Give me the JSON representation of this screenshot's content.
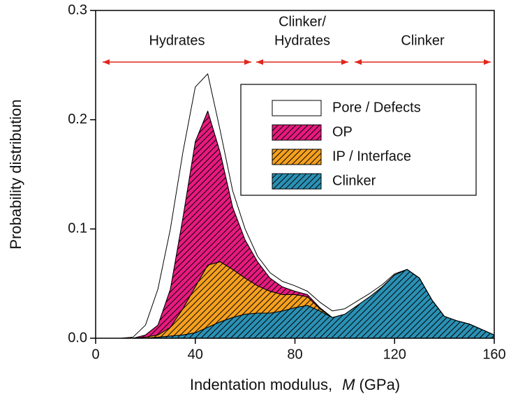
{
  "chart_data": {
    "type": "stacked-area",
    "y_label": "Probability distribution",
    "x_label": {
      "text": "Indentation modulus,",
      "symbol": "M",
      "unit": "(GPa)"
    },
    "xlim": [
      0,
      160
    ],
    "ylim": [
      0,
      0.3
    ],
    "xticks": [
      0,
      40,
      80,
      120,
      160
    ],
    "yticks": [
      {
        "value": 0,
        "label": "0.0"
      },
      0.1,
      0.2,
      0.3
    ],
    "annotations": [
      {
        "lines": [
          "Hydrates"
        ]
      },
      {
        "lines": [
          "Clinker/",
          "Hydrates"
        ]
      },
      {
        "lines": [
          "Clinker"
        ]
      }
    ],
    "x": [
      10,
      15,
      20,
      25,
      30,
      35,
      40,
      45,
      50,
      55,
      60,
      65,
      70,
      75,
      80,
      85,
      90,
      95,
      100,
      105,
      110,
      115,
      120,
      125,
      130,
      135,
      140,
      145,
      150,
      155,
      160
    ],
    "series": [
      {
        "name": "Pore / Defects",
        "color": "#ffffff",
        "hatch": false,
        "values": [
          0,
          0.001,
          0.009,
          0.033,
          0.055,
          0.06,
          0.05,
          0.034,
          0.02,
          0.015,
          0.01,
          0.005,
          0.005,
          0.005,
          0.005,
          0.003,
          0.005,
          0.006,
          0.005,
          0.004,
          0.003,
          0.002,
          0.001,
          0,
          0,
          0,
          0,
          0,
          0,
          0,
          0
        ]
      },
      {
        "name": "OP",
        "color": "#e8197f",
        "hatch": true,
        "values": [
          0,
          0,
          0.002,
          0.009,
          0.035,
          0.083,
          0.133,
          0.141,
          0.1,
          0.057,
          0.035,
          0.022,
          0.012,
          0.007,
          0.003,
          0.002,
          0.001,
          0,
          0,
          0,
          0,
          0,
          0,
          0,
          0,
          0,
          0,
          0,
          0,
          0,
          0
        ]
      },
      {
        "name": "IP / Interface",
        "color": "#f5a01e",
        "hatch": true,
        "values": [
          0,
          0,
          0.001,
          0.002,
          0.008,
          0.024,
          0.042,
          0.057,
          0.055,
          0.044,
          0.033,
          0.025,
          0.02,
          0.015,
          0.012,
          0.008,
          0.002,
          0,
          0,
          0,
          0,
          0,
          0,
          0,
          0,
          0,
          0,
          0,
          0,
          0,
          0
        ]
      },
      {
        "name": "Clinker",
        "color": "#2a90b4",
        "hatch": true,
        "values": [
          0,
          0,
          0,
          0.001,
          0.002,
          0.003,
          0.005,
          0.01,
          0.015,
          0.019,
          0.022,
          0.023,
          0.023,
          0.025,
          0.028,
          0.03,
          0.025,
          0.019,
          0.022,
          0.03,
          0.038,
          0.047,
          0.058,
          0.063,
          0.055,
          0.035,
          0.02,
          0.016,
          0.013,
          0.008,
          0.003
        ]
      }
    ]
  }
}
